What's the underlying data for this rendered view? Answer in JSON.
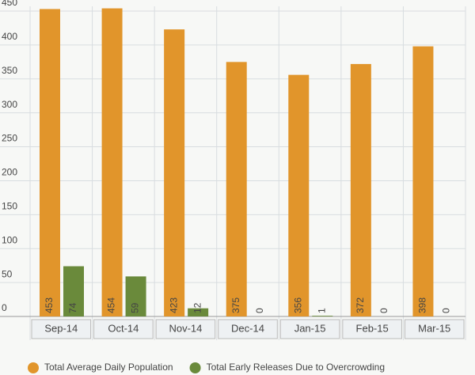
{
  "chart_data": {
    "type": "bar",
    "categories": [
      "Sep-14",
      "Oct-14",
      "Nov-14",
      "Dec-14",
      "Jan-15",
      "Feb-15",
      "Mar-15"
    ],
    "series": [
      {
        "name": "Total Average Daily Population",
        "color": "#e1952b",
        "values": [
          453,
          454,
          423,
          375,
          356,
          372,
          398
        ]
      },
      {
        "name": "Total Early Releases Due to Overcrowding",
        "color": "#6a8a3b",
        "values": [
          74,
          59,
          12,
          0,
          1,
          0,
          0
        ]
      }
    ],
    "ylim": [
      0,
      450
    ],
    "yticks": [
      0,
      50,
      100,
      150,
      200,
      250,
      300,
      350,
      400,
      450
    ],
    "grid": true,
    "legend": "bottom"
  }
}
